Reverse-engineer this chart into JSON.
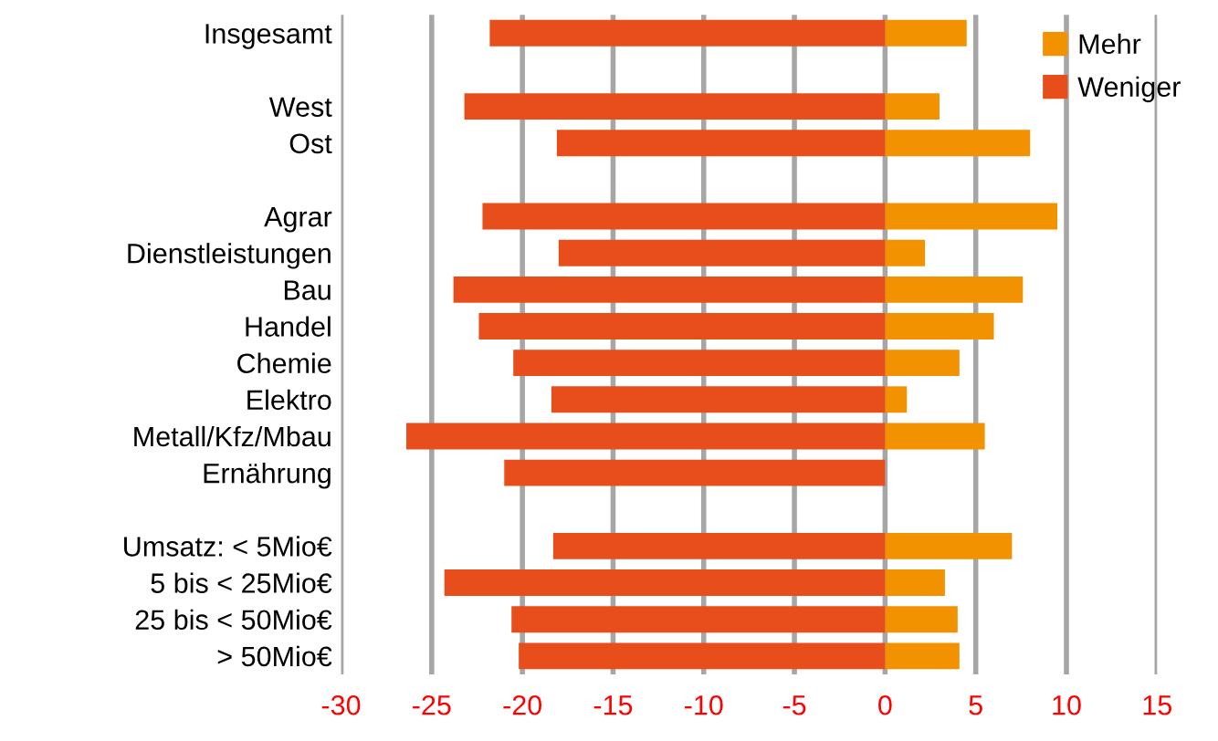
{
  "chart_data": {
    "type": "bar",
    "orientation": "horizontal",
    "categories": [
      "Insgesamt",
      null,
      "West",
      "Ost",
      null,
      "Agrar",
      "Dienstleistungen",
      "Bau",
      "Handel",
      "Chemie",
      "Elektro",
      "Metall/Kfz/Mbau",
      "Ernährung",
      null,
      "Umsatz: < 5Mio€",
      "5 bis < 25Mio€",
      "25 bis < 50Mio€",
      "> 50Mio€"
    ],
    "series": [
      {
        "name": "Mehr",
        "color": "#f39200",
        "values": [
          4.5,
          null,
          3.0,
          8.0,
          null,
          9.5,
          2.2,
          7.6,
          6.0,
          4.1,
          1.2,
          5.5,
          null,
          null,
          7.0,
          3.3,
          4.0,
          4.1
        ]
      },
      {
        "name": "Weniger",
        "color": "#e84e1b",
        "values": [
          -21.8,
          null,
          -23.2,
          -18.1,
          null,
          -22.2,
          -18.0,
          -23.8,
          -22.4,
          -20.5,
          -18.4,
          -26.4,
          -21.0,
          null,
          -18.3,
          -24.3,
          -20.6,
          -20.2
        ]
      }
    ],
    "xlim": [
      -30,
      15
    ],
    "xticks": [
      -30,
      -25,
      -20,
      -15,
      -10,
      -5,
      0,
      5,
      10,
      15
    ],
    "stacked": true,
    "grid": "x",
    "legend": "top right"
  }
}
